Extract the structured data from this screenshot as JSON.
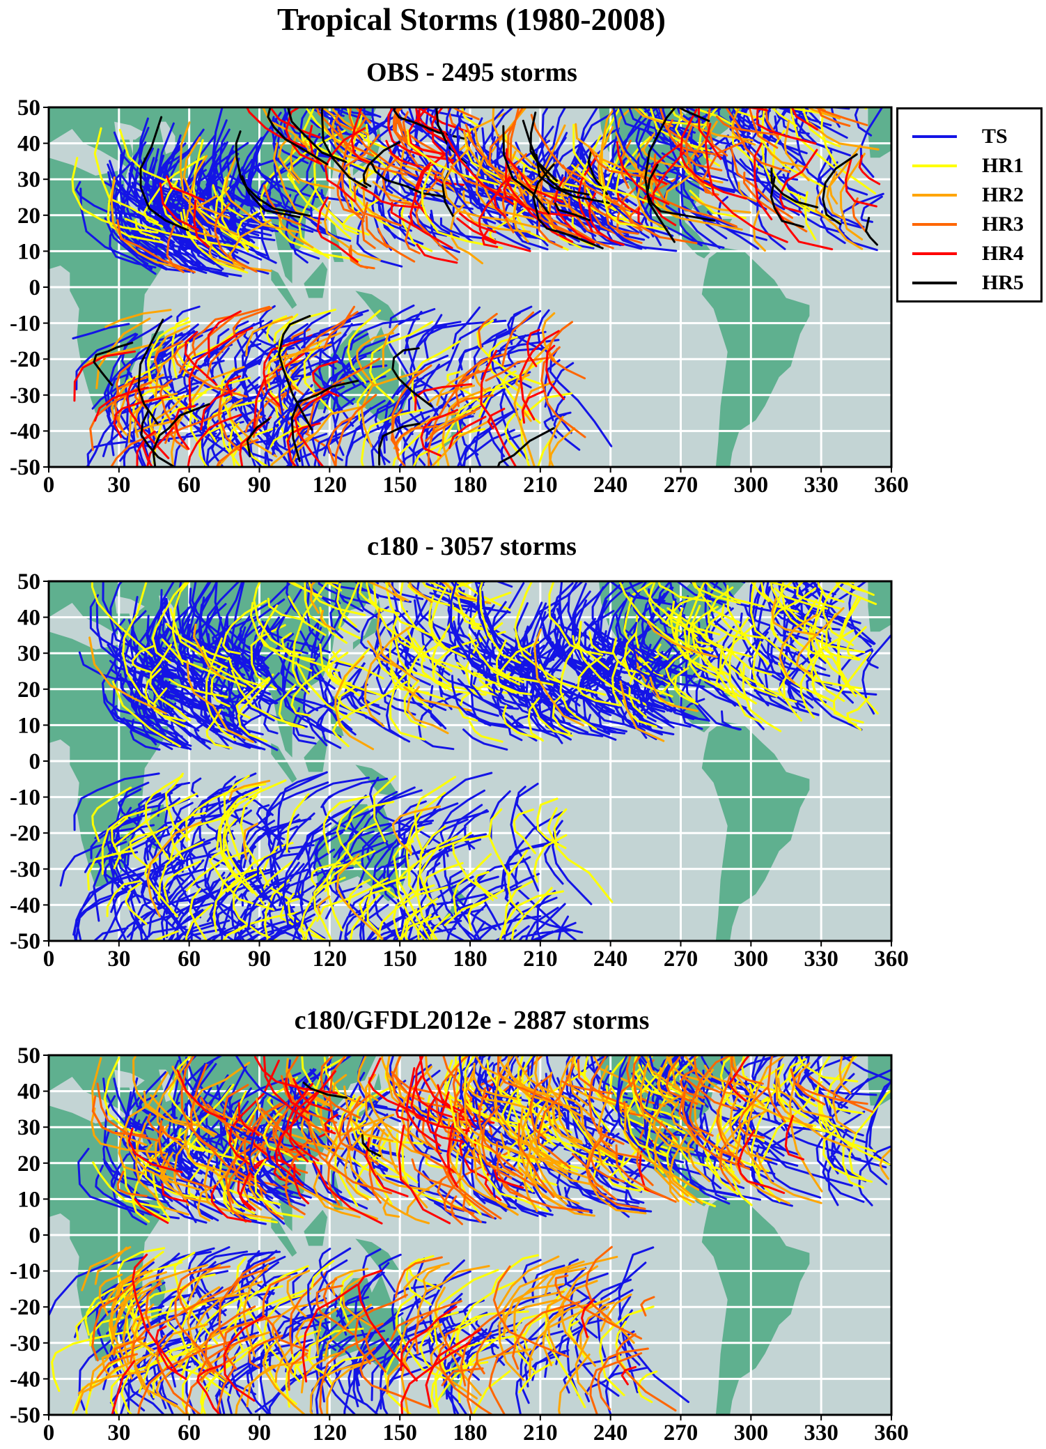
{
  "title": "Tropical Storms  (1980-2008)",
  "colors": {
    "ocean": "#c3d4d4",
    "land": "#5fb08f",
    "grid": "#ffffff",
    "TS": "#1414e6",
    "HR1": "#ffff00",
    "HR2": "#ffa500",
    "HR3": "#ff6600",
    "HR4": "#ff0000",
    "HR5": "#000000"
  },
  "legend": {
    "placement": "right of top panel",
    "items": [
      {
        "label": "TS",
        "color": "#1414e6"
      },
      {
        "label": "HR1",
        "color": "#ffff00"
      },
      {
        "label": "HR2",
        "color": "#ffa500"
      },
      {
        "label": "HR3",
        "color": "#ff6600"
      },
      {
        "label": "HR4",
        "color": "#ff0000"
      },
      {
        "label": "HR5",
        "color": "#000000"
      }
    ]
  },
  "panels": [
    {
      "title": "OBS  -  2495 storms",
      "x_ticks": [
        "0",
        "30",
        "60",
        "90",
        "120",
        "150",
        "180",
        "210",
        "240",
        "270",
        "300",
        "330",
        "360"
      ],
      "y_ticks": [
        "50",
        "40",
        "30",
        "20",
        "10",
        "0",
        "-10",
        "-20",
        "-30",
        "-40",
        "-50"
      ],
      "xlim": [
        0,
        360
      ],
      "ylim": [
        -50,
        50
      ],
      "basins": [
        {
          "lon": [
            42,
            100
          ],
          "lat": [
            3,
            25
          ],
          "TS": 0.82,
          "HR1": 0.1,
          "HR2": 0.04,
          "HR3": 0.02,
          "HR4": 0.015,
          "HR5": 0.005
        },
        {
          "lon": [
            105,
            190
          ],
          "lat": [
            5,
            48
          ],
          "TS": 0.45,
          "HR1": 0.1,
          "HR2": 0.13,
          "HR3": 0.14,
          "HR4": 0.12,
          "HR5": 0.06
        },
        {
          "lon": [
            190,
            262
          ],
          "lat": [
            10,
            30
          ],
          "TS": 0.55,
          "HR1": 0.1,
          "HR2": 0.1,
          "HR3": 0.12,
          "HR4": 0.09,
          "HR5": 0.04
        },
        {
          "lon": [
            262,
            355
          ],
          "lat": [
            10,
            50
          ],
          "TS": 0.5,
          "HR1": 0.14,
          "HR2": 0.12,
          "HR3": 0.12,
          "HR4": 0.08,
          "HR5": 0.04
        },
        {
          "lon": [
            33,
            115
          ],
          "lat": [
            -43,
            -5
          ],
          "TS": 0.5,
          "HR1": 0.12,
          "HR2": 0.12,
          "HR3": 0.13,
          "HR4": 0.1,
          "HR5": 0.03
        },
        {
          "lon": [
            110,
            225
          ],
          "lat": [
            -43,
            -5
          ],
          "TS": 0.55,
          "HR1": 0.12,
          "HR2": 0.12,
          "HR3": 0.11,
          "HR4": 0.07,
          "HR5": 0.03
        }
      ]
    },
    {
      "title": "c180  -  3057 storms",
      "x_ticks": [
        "0",
        "30",
        "60",
        "90",
        "120",
        "150",
        "180",
        "210",
        "240",
        "270",
        "300",
        "330",
        "360"
      ],
      "y_ticks": [
        "50",
        "40",
        "30",
        "20",
        "10",
        "0",
        "-10",
        "-20",
        "-30",
        "-40",
        "-50"
      ],
      "xlim": [
        0,
        360
      ],
      "ylim": [
        -50,
        50
      ],
      "basins": [
        {
          "lon": [
            42,
            100
          ],
          "lat": [
            3,
            32
          ],
          "TS": 0.85,
          "HR1": 0.13,
          "HR2": 0.02,
          "HR3": 0,
          "HR4": 0,
          "HR5": 0
        },
        {
          "lon": [
            105,
            200
          ],
          "lat": [
            3,
            50
          ],
          "TS": 0.55,
          "HR1": 0.38,
          "HR2": 0.07,
          "HR3": 0,
          "HR4": 0,
          "HR5": 0
        },
        {
          "lon": [
            200,
            268
          ],
          "lat": [
            5,
            30
          ],
          "TS": 0.82,
          "HR1": 0.16,
          "HR2": 0.02,
          "HR3": 0,
          "HR4": 0,
          "HR5": 0
        },
        {
          "lon": [
            262,
            355
          ],
          "lat": [
            8,
            50
          ],
          "TS": 0.55,
          "HR1": 0.42,
          "HR2": 0.03,
          "HR3": 0,
          "HR4": 0,
          "HR5": 0
        },
        {
          "lon": [
            32,
            110
          ],
          "lat": [
            -48,
            -3
          ],
          "TS": 0.75,
          "HR1": 0.23,
          "HR2": 0.02,
          "HR3": 0,
          "HR4": 0,
          "HR5": 0
        },
        {
          "lon": [
            110,
            225
          ],
          "lat": [
            -48,
            -3
          ],
          "TS": 0.7,
          "HR1": 0.28,
          "HR2": 0.02,
          "HR3": 0,
          "HR4": 0,
          "HR5": 0
        }
      ]
    },
    {
      "title": "c180/GFDL2012e  -  2887 storms",
      "x_ticks": [
        "0",
        "30",
        "60",
        "90",
        "120",
        "150",
        "180",
        "210",
        "240",
        "270",
        "300",
        "330",
        "360"
      ],
      "y_ticks": [
        "50",
        "40",
        "30",
        "20",
        "10",
        "0",
        "-10",
        "-20",
        "-30",
        "-40",
        "-50"
      ],
      "xlim": [
        0,
        360
      ],
      "ylim": [
        -50,
        50
      ],
      "basins": [
        {
          "lon": [
            40,
            105
          ],
          "lat": [
            3,
            33
          ],
          "TS": 0.55,
          "HR1": 0.12,
          "HR2": 0.14,
          "HR3": 0.12,
          "HR4": 0.07,
          "HR5": 0
        },
        {
          "lon": [
            105,
            195
          ],
          "lat": [
            3,
            40
          ],
          "TS": 0.3,
          "HR1": 0.14,
          "HR2": 0.2,
          "HR3": 0.2,
          "HR4": 0.15,
          "HR5": 0.01
        },
        {
          "lon": [
            195,
            265
          ],
          "lat": [
            5,
            40
          ],
          "TS": 0.45,
          "HR1": 0.2,
          "HR2": 0.22,
          "HR3": 0.12,
          "HR4": 0.01,
          "HR5": 0
        },
        {
          "lon": [
            262,
            360
          ],
          "lat": [
            8,
            43
          ],
          "TS": 0.5,
          "HR1": 0.2,
          "HR2": 0.18,
          "HR3": 0.1,
          "HR4": 0.02,
          "HR5": 0
        },
        {
          "lon": [
            30,
            120
          ],
          "lat": [
            -38,
            -3
          ],
          "TS": 0.45,
          "HR1": 0.2,
          "HR2": 0.2,
          "HR3": 0.12,
          "HR4": 0.03,
          "HR5": 0
        },
        {
          "lon": [
            120,
            260
          ],
          "lat": [
            -38,
            -3
          ],
          "TS": 0.45,
          "HR1": 0.17,
          "HR2": 0.2,
          "HR3": 0.14,
          "HR4": 0.04,
          "HR5": 0
        }
      ]
    }
  ]
}
